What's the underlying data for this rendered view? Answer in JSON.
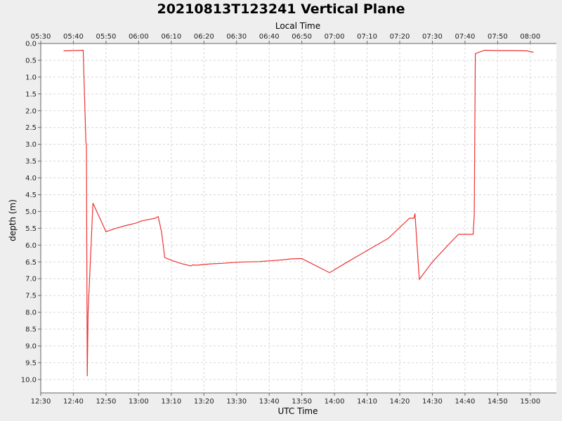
{
  "chart_data": {
    "type": "line",
    "title": "20210813T123241 Vertical Plane",
    "xlabel": "UTC Time",
    "x2label": "Local Time",
    "ylabel": "depth (m)",
    "x_axis": {
      "min": "12:30",
      "max": "15:08",
      "tick_labels": [
        "12:30",
        "12:40",
        "12:50",
        "13:00",
        "13:10",
        "13:20",
        "13:30",
        "13:40",
        "13:50",
        "14:00",
        "14:10",
        "14:20",
        "14:30",
        "14:40",
        "14:50",
        "15:00"
      ]
    },
    "x2_axis": {
      "tick_labels": [
        "05:30",
        "05:40",
        "05:50",
        "06:00",
        "06:10",
        "06:20",
        "06:30",
        "06:40",
        "06:50",
        "07:00",
        "07:10",
        "07:20",
        "07:30",
        "07:40",
        "07:50",
        "08:00"
      ]
    },
    "y_axis": {
      "min": 0.0,
      "max": 10.4,
      "inverted": true,
      "tick_labels": [
        "0.0",
        "0.5",
        "1.0",
        "1.5",
        "2.0",
        "2.5",
        "3.0",
        "3.5",
        "4.0",
        "4.5",
        "5.0",
        "5.5",
        "6.0",
        "6.5",
        "7.0",
        "7.5",
        "8.0",
        "8.5",
        "9.0",
        "9.5",
        "10.0"
      ]
    },
    "grid": true,
    "colors": {
      "series": "#ee3333"
    },
    "series": [
      {
        "x": [
          "12:37:00",
          "12:43:00",
          "12:43:50",
          "12:44:00",
          "12:44:15",
          "12:44:30",
          "12:46:00",
          "12:50:00",
          "12:53:00",
          "12:56:00",
          "12:59:00",
          "13:01:00",
          "13:05:00",
          "13:06:00",
          "13:07:00",
          "13:08:00",
          "13:10:00",
          "13:13:00",
          "13:16:00",
          "13:16:30",
          "13:18:00",
          "13:18:30",
          "13:22:00",
          "13:26:00",
          "13:30:00",
          "13:33:00",
          "13:37:00",
          "13:40:00",
          "13:44:00",
          "13:47:00",
          "13:50:00",
          "13:58:30",
          "14:04:00",
          "14:10:00",
          "14:16:30",
          "14:23:00",
          "14:24:20",
          "14:24:40",
          "14:25:20",
          "14:26:00",
          "14:30:00",
          "14:35:00",
          "14:38:00",
          "14:42:30",
          "14:42:50",
          "14:43:10",
          "14:46:00",
          "14:50:00",
          "14:55:00",
          "14:59:00",
          "15:01:00"
        ],
        "y": [
          0.22,
          0.2,
          2.95,
          3.0,
          9.9,
          8.0,
          4.75,
          5.6,
          5.5,
          5.42,
          5.35,
          5.28,
          5.2,
          5.15,
          5.6,
          6.37,
          6.45,
          6.55,
          6.62,
          6.59,
          6.6,
          6.59,
          6.56,
          6.54,
          6.51,
          6.5,
          6.49,
          6.47,
          6.44,
          6.41,
          6.4,
          6.82,
          6.5,
          6.16,
          5.8,
          5.2,
          5.2,
          5.06,
          6.05,
          7.02,
          6.5,
          5.98,
          5.68,
          5.68,
          5.1,
          0.3,
          0.2,
          0.21,
          0.21,
          0.22,
          0.26
        ]
      }
    ]
  }
}
